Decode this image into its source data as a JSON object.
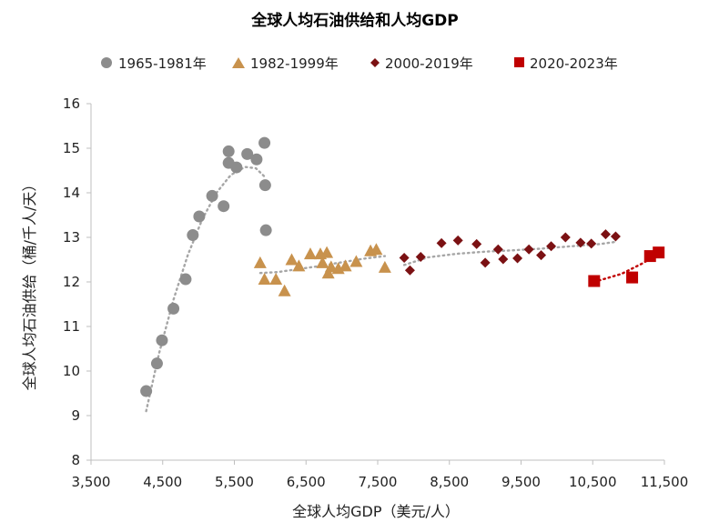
{
  "chart_data": {
    "type": "scatter",
    "title": "全球人均石油供给和人均GDP",
    "xlabel": "全球人均GDP（美元/人）",
    "ylabel": "全球人均石油供给（桶/千人/天）",
    "xlim": [
      3500,
      11500
    ],
    "ylim": [
      8,
      16
    ],
    "xticks": [
      3500,
      4500,
      5500,
      6500,
      7500,
      8500,
      9500,
      10500,
      11500
    ],
    "xtick_labels": [
      "3,500",
      "4,500",
      "5,500",
      "6,500",
      "7,500",
      "8,500",
      "9,500",
      "10,500",
      "11,500"
    ],
    "yticks": [
      8,
      9,
      10,
      11,
      12,
      13,
      14,
      15,
      16
    ],
    "ytick_labels": [
      "8",
      "9",
      "10",
      "11",
      "12",
      "13",
      "14",
      "15",
      "16"
    ],
    "legend_position": "top",
    "series": [
      {
        "name": "1965-1981年",
        "marker": "circle",
        "color": "#8c8c8c",
        "points": [
          [
            4270,
            9.55
          ],
          [
            4420,
            10.17
          ],
          [
            4490,
            10.69
          ],
          [
            4650,
            11.4
          ],
          [
            4820,
            12.06
          ],
          [
            4920,
            13.05
          ],
          [
            5010,
            13.47
          ],
          [
            5190,
            13.93
          ],
          [
            5350,
            13.7
          ],
          [
            5420,
            14.67
          ],
          [
            5420,
            14.93
          ],
          [
            5530,
            14.57
          ],
          [
            5680,
            14.87
          ],
          [
            5810,
            14.75
          ],
          [
            5920,
            15.12
          ],
          [
            5930,
            14.17
          ],
          [
            5940,
            13.16
          ]
        ],
        "trend": [
          [
            4270,
            9.1
          ],
          [
            4450,
            10.4
          ],
          [
            4650,
            11.6
          ],
          [
            4850,
            12.6
          ],
          [
            5050,
            13.4
          ],
          [
            5250,
            14.0
          ],
          [
            5450,
            14.4
          ],
          [
            5650,
            14.58
          ],
          [
            5800,
            14.55
          ],
          [
            5930,
            14.35
          ]
        ]
      },
      {
        "name": "1982-1999年",
        "marker": "triangle",
        "color": "#c8924d",
        "points": [
          [
            5860,
            12.43
          ],
          [
            5920,
            12.06
          ],
          [
            6080,
            12.06
          ],
          [
            6200,
            11.8
          ],
          [
            6300,
            12.5
          ],
          [
            6400,
            12.36
          ],
          [
            6560,
            12.63
          ],
          [
            6700,
            12.63
          ],
          [
            6730,
            12.43
          ],
          [
            6790,
            12.66
          ],
          [
            6810,
            12.2
          ],
          [
            6850,
            12.34
          ],
          [
            6950,
            12.3
          ],
          [
            7050,
            12.36
          ],
          [
            7200,
            12.46
          ],
          [
            7400,
            12.7
          ],
          [
            7480,
            12.73
          ],
          [
            7600,
            12.33
          ]
        ],
        "trend": [
          [
            5860,
            12.2
          ],
          [
            6100,
            12.22
          ],
          [
            6400,
            12.29
          ],
          [
            6700,
            12.36
          ],
          [
            7000,
            12.44
          ],
          [
            7300,
            12.52
          ],
          [
            7600,
            12.58
          ]
        ]
      },
      {
        "name": "2000-2019年",
        "marker": "diamond",
        "color": "#7b1113",
        "points": [
          [
            7870,
            12.54
          ],
          [
            7950,
            12.26
          ],
          [
            8100,
            12.56
          ],
          [
            8390,
            12.87
          ],
          [
            8620,
            12.93
          ],
          [
            8880,
            12.85
          ],
          [
            9000,
            12.43
          ],
          [
            9180,
            12.73
          ],
          [
            9250,
            12.51
          ],
          [
            9450,
            12.53
          ],
          [
            9610,
            12.73
          ],
          [
            9780,
            12.6
          ],
          [
            9920,
            12.8
          ],
          [
            10120,
            13.0
          ],
          [
            10330,
            12.88
          ],
          [
            10480,
            12.86
          ],
          [
            10680,
            13.07
          ],
          [
            10820,
            13.02
          ]
        ],
        "trend": [
          [
            7870,
            12.38
          ],
          [
            8200,
            12.55
          ],
          [
            8600,
            12.63
          ],
          [
            9000,
            12.68
          ],
          [
            9400,
            12.71
          ],
          [
            9800,
            12.75
          ],
          [
            10200,
            12.8
          ],
          [
            10600,
            12.85
          ],
          [
            10820,
            12.9
          ]
        ]
      },
      {
        "name": "2020-2023年",
        "marker": "square",
        "color": "#c00000",
        "points": [
          [
            10520,
            12.02
          ],
          [
            11050,
            12.1
          ],
          [
            11300,
            12.58
          ],
          [
            11420,
            12.66
          ]
        ],
        "trend": [
          [
            10520,
            12.0
          ],
          [
            10900,
            12.18
          ],
          [
            11200,
            12.42
          ],
          [
            11420,
            12.64
          ]
        ]
      }
    ]
  }
}
